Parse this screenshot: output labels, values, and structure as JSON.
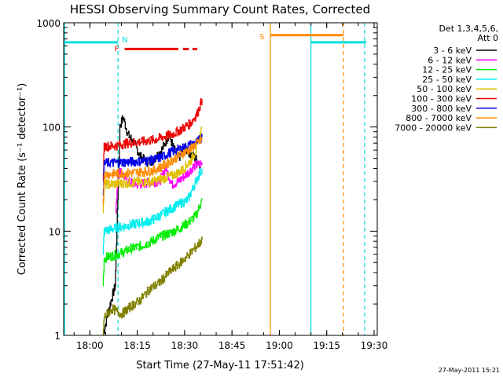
{
  "chart_data": {
    "type": "line",
    "title": "HESSI Observing Summary Count Rates, Corrected",
    "xlabel": "Start Time (27-May-11 17:51:42)",
    "ylabel": "Corrected Count Rate (s⁻¹ detector⁻¹)",
    "yscale": "log",
    "ylim": [
      1,
      1000
    ],
    "xlim": [
      "17:51:42",
      "19:31:00"
    ],
    "x_ticks": [
      "18:00",
      "18:15",
      "18:30",
      "18:45",
      "19:00",
      "19:15",
      "19:30"
    ],
    "y_ticks": [
      "1",
      "10",
      "100",
      "1000"
    ],
    "legend": {
      "placement": "right",
      "header": [
        "Det 1,3,4,5,6,",
        "Att 0"
      ],
      "entries": [
        {
          "label": "3 - 6 keV",
          "color": "#000000"
        },
        {
          "label": "6 - 12 keV",
          "color": "#ff00ff"
        },
        {
          "label": "12 - 25 keV",
          "color": "#00ee00"
        },
        {
          "label": "25 - 50 keV",
          "color": "#00eeee"
        },
        {
          "label": "50 - 100 keV",
          "color": "#e0c000"
        },
        {
          "label": "100 - 300 keV",
          "color": "#ee0000"
        },
        {
          "label": "300 - 800 keV",
          "color": "#0000ee"
        },
        {
          "label": "800 - 7000 keV",
          "color": "#ff8c00"
        },
        {
          "label": "7000 - 20000 keV",
          "color": "#808000"
        }
      ]
    },
    "flags": [
      {
        "label": "N",
        "color": "#00dddd"
      },
      {
        "label": "F",
        "color": "#ee0000"
      },
      {
        "label": "S",
        "color": "#ff8c00"
      }
    ],
    "series": [
      {
        "color": "#000000",
        "points": [
          [
            "18:04:10",
            1.0
          ],
          [
            "18:06:00",
            1.8
          ],
          [
            "18:08:00",
            3.0
          ],
          [
            "18:09:30",
            100
          ],
          [
            "18:10:30",
            125
          ],
          [
            "18:12:00",
            85
          ],
          [
            "18:14:00",
            70
          ],
          [
            "18:16:00",
            52
          ],
          [
            "18:18:00",
            46
          ],
          [
            "18:20:00",
            48
          ],
          [
            "18:23:00",
            62
          ],
          [
            "18:25:00",
            85
          ],
          [
            "18:26:30",
            62
          ],
          [
            "18:28:00",
            50
          ],
          [
            "18:30:00",
            62
          ],
          [
            "18:32:00",
            55
          ],
          [
            "18:34:00",
            48
          ],
          [
            "18:35:00",
            42
          ]
        ]
      },
      {
        "color": "#ff00ff",
        "points": [
          [
            "18:08:10",
            15
          ],
          [
            "18:09:00",
            40
          ],
          [
            "18:12:00",
            30
          ],
          [
            "18:15:00",
            28
          ],
          [
            "18:18:00",
            29
          ],
          [
            "18:22:00",
            30
          ],
          [
            "18:24:00",
            40
          ],
          [
            "18:26:00",
            28
          ],
          [
            "18:28:00",
            30
          ],
          [
            "18:30:00",
            34
          ],
          [
            "18:33:00",
            42
          ],
          [
            "18:35:30",
            45
          ]
        ]
      },
      {
        "color": "#00ee00",
        "points": [
          [
            "18:04:10",
            3.0
          ],
          [
            "18:04:30",
            5.5
          ],
          [
            "18:07:00",
            5.8
          ],
          [
            "18:10:00",
            6.2
          ],
          [
            "18:13:00",
            6.8
          ],
          [
            "18:16:00",
            7.2
          ],
          [
            "18:19:00",
            7.8
          ],
          [
            "18:22:00",
            8.8
          ],
          [
            "18:25:00",
            9.5
          ],
          [
            "18:28:00",
            10.5
          ],
          [
            "18:31:00",
            12
          ],
          [
            "18:33:30",
            14
          ],
          [
            "18:35:30",
            20
          ]
        ]
      },
      {
        "color": "#00eeee",
        "points": [
          [
            "18:04:10",
            6.0
          ],
          [
            "18:04:30",
            10
          ],
          [
            "18:07:00",
            10.5
          ],
          [
            "18:10:00",
            11
          ],
          [
            "18:13:00",
            11.5
          ],
          [
            "18:16:00",
            12
          ],
          [
            "18:19:00",
            12.5
          ],
          [
            "18:22:00",
            14
          ],
          [
            "18:25:00",
            16
          ],
          [
            "18:28:00",
            18
          ],
          [
            "18:31:00",
            20
          ],
          [
            "18:33:30",
            30
          ],
          [
            "18:35:30",
            40
          ]
        ]
      },
      {
        "color": "#e0c000",
        "points": [
          [
            "18:04:10",
            15
          ],
          [
            "18:04:30",
            28
          ],
          [
            "18:08:00",
            28.5
          ],
          [
            "18:12:00",
            29
          ],
          [
            "18:16:00",
            29.5
          ],
          [
            "18:20:00",
            30
          ],
          [
            "18:23:00",
            32
          ],
          [
            "18:26:00",
            34
          ],
          [
            "18:29:00",
            38
          ],
          [
            "18:32:00",
            48
          ],
          [
            "18:34:00",
            65
          ],
          [
            "18:35:30",
            100
          ]
        ]
      },
      {
        "color": "#ee0000",
        "points": [
          [
            "18:04:10",
            30
          ],
          [
            "18:04:30",
            65
          ],
          [
            "18:08:00",
            66
          ],
          [
            "18:12:00",
            70
          ],
          [
            "18:16:00",
            72
          ],
          [
            "18:20:00",
            75
          ],
          [
            "18:23:00",
            80
          ],
          [
            "18:26:00",
            85
          ],
          [
            "18:29:00",
            95
          ],
          [
            "18:32:00",
            110
          ],
          [
            "18:34:00",
            135
          ],
          [
            "18:35:30",
            185
          ]
        ]
      },
      {
        "color": "#0000ee",
        "points": [
          [
            "18:04:10",
            22
          ],
          [
            "18:04:30",
            45
          ],
          [
            "18:08:00",
            45.5
          ],
          [
            "18:12:00",
            46
          ],
          [
            "18:16:00",
            47
          ],
          [
            "18:20:00",
            48
          ],
          [
            "18:23:00",
            52
          ],
          [
            "18:26:00",
            58
          ],
          [
            "18:29:00",
            62
          ],
          [
            "18:32:00",
            68
          ],
          [
            "18:34:00",
            72
          ],
          [
            "18:35:30",
            80
          ]
        ]
      },
      {
        "color": "#ff8c00",
        "points": [
          [
            "18:04:10",
            18
          ],
          [
            "18:04:30",
            35
          ],
          [
            "18:08:00",
            35.5
          ],
          [
            "18:12:00",
            36
          ],
          [
            "18:16:00",
            37
          ],
          [
            "18:20:00",
            38
          ],
          [
            "18:23:00",
            42
          ],
          [
            "18:26:00",
            48
          ],
          [
            "18:29:00",
            55
          ],
          [
            "18:32:00",
            62
          ],
          [
            "18:34:00",
            70
          ],
          [
            "18:35:30",
            75
          ]
        ]
      },
      {
        "color": "#808000",
        "points": [
          [
            "18:04:10",
            1.0
          ],
          [
            "18:04:30",
            1.5
          ],
          [
            "18:07:00",
            1.8
          ],
          [
            "18:10:00",
            1.6
          ],
          [
            "18:13:00",
            1.9
          ],
          [
            "18:16:00",
            2.2
          ],
          [
            "18:19:00",
            2.8
          ],
          [
            "18:22:00",
            3.2
          ],
          [
            "18:25:00",
            4.0
          ],
          [
            "18:28:00",
            4.8
          ],
          [
            "18:31:00",
            5.8
          ],
          [
            "18:33:30",
            7.0
          ],
          [
            "18:35:30",
            8.2
          ]
        ]
      }
    ],
    "vertical_lines": [
      {
        "x": "17:52:00",
        "color": "#00dddd",
        "style": "solid"
      },
      {
        "x": "18:08:55",
        "color": "#00dddd",
        "style": "dashed"
      },
      {
        "x": "18:57:10",
        "color": "#ff8c00",
        "style": "solid"
      },
      {
        "x": "19:10:00",
        "color": "#00dddd",
        "style": "solid"
      },
      {
        "x": "19:20:20",
        "color": "#ff8c00",
        "style": "dashed"
      },
      {
        "x": "19:27:00",
        "color": "#00dddd",
        "style": "dashed"
      }
    ],
    "flag_bars": [
      {
        "label": "N",
        "color": "#00dddd",
        "y": 650,
        "segments": [
          [
            "17:51:42",
            "18:08:55"
          ],
          [
            "19:10:00",
            "19:27:30"
          ]
        ],
        "dashed": false
      },
      {
        "label": "F",
        "color": "#ee0000",
        "y": 560,
        "segments": [
          [
            "18:11:00",
            "18:28:00"
          ],
          [
            "18:29:30",
            "18:31:20"
          ],
          [
            "18:32:30",
            "18:34:00"
          ]
        ],
        "dashed": false
      },
      {
        "label": "S",
        "color": "#ff8c00",
        "y": 760,
        "segments": [
          [
            "18:57:10",
            "19:20:20"
          ]
        ],
        "dashed": false
      }
    ]
  },
  "footer": {
    "timestamp": "27-May-2011 15:21"
  }
}
